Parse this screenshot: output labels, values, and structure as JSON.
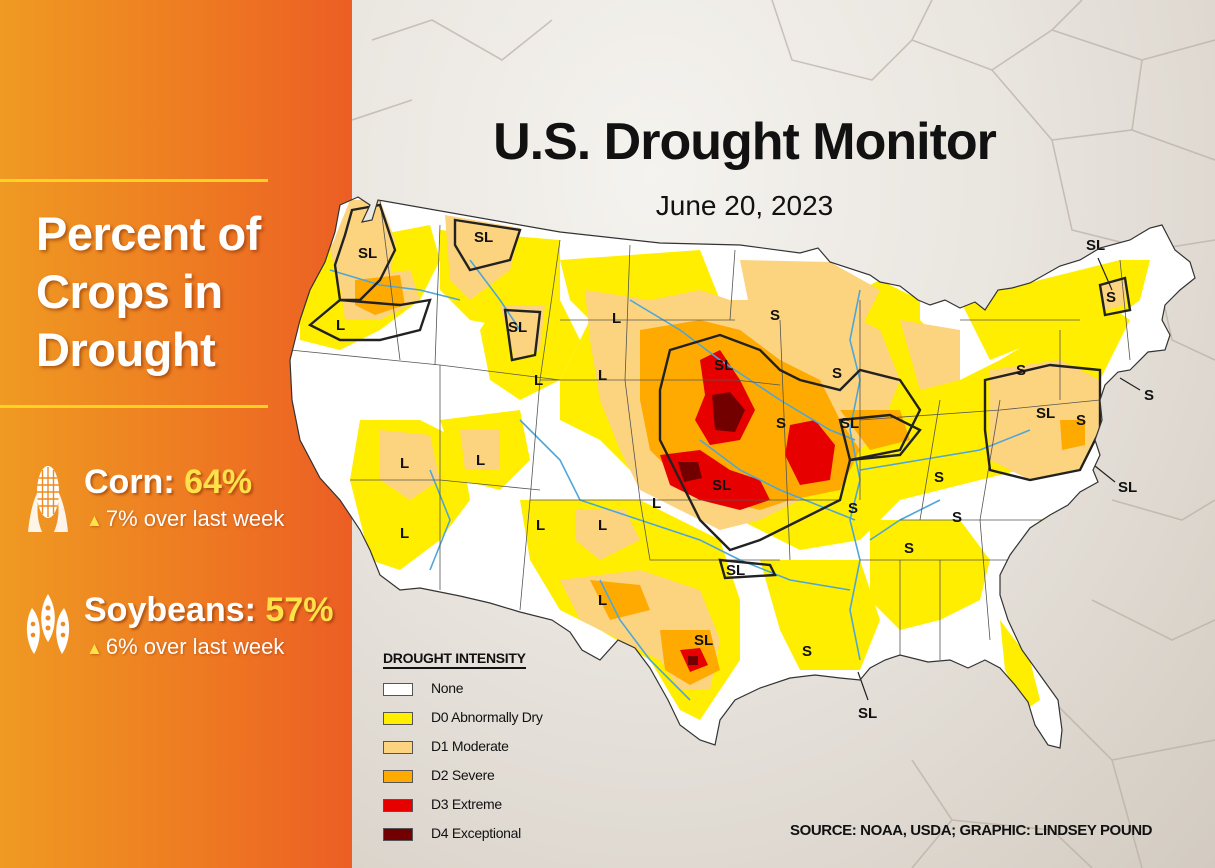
{
  "panel": {
    "headline_lines": [
      "Percent of",
      "Crops in",
      "Drought"
    ],
    "crops": [
      {
        "icon": "corn-icon",
        "name": "Corn:",
        "percent": "64%",
        "change": "7% over last week"
      },
      {
        "icon": "soybean-icon",
        "name": "Soybeans:",
        "percent": "57%",
        "change": "6% over last week"
      }
    ]
  },
  "map": {
    "title": "U.S. Drought Monitor",
    "date": "June 20, 2023",
    "impact_labels": [
      "SL",
      "SL",
      "SL",
      "L",
      "SL",
      "L",
      "L",
      "L",
      "L",
      "L",
      "L",
      "SL",
      "SL",
      "L",
      "L",
      "L",
      "L",
      "S",
      "S",
      "S",
      "SL",
      "S",
      "S",
      "SL",
      "S",
      "S",
      "S",
      "S",
      "S",
      "S",
      "SL",
      "SL",
      "S",
      "SL",
      "SL"
    ],
    "legend": {
      "title": "DROUGHT INTENSITY",
      "items": [
        {
          "label": "None",
          "color": "#ffffff"
        },
        {
          "label": "D0 Abnormally Dry",
          "color": "#ffee00"
        },
        {
          "label": "D1 Moderate",
          "color": "#fcd37f"
        },
        {
          "label": "D2 Severe",
          "color": "#ffaa00"
        },
        {
          "label": "D3 Extreme",
          "color": "#e60000"
        },
        {
          "label": "D4 Exceptional",
          "color": "#730000"
        }
      ]
    },
    "source": "SOURCE: NOAA, USDA; GRAPHIC: LINDSEY POUND"
  },
  "colors": {
    "panel_orange": "#ee7b22",
    "accent_yellow": "#ffd21f",
    "percent_yellow": "#ffe14a",
    "river_blue": "#4ea6d8",
    "boundary": "#222222"
  }
}
